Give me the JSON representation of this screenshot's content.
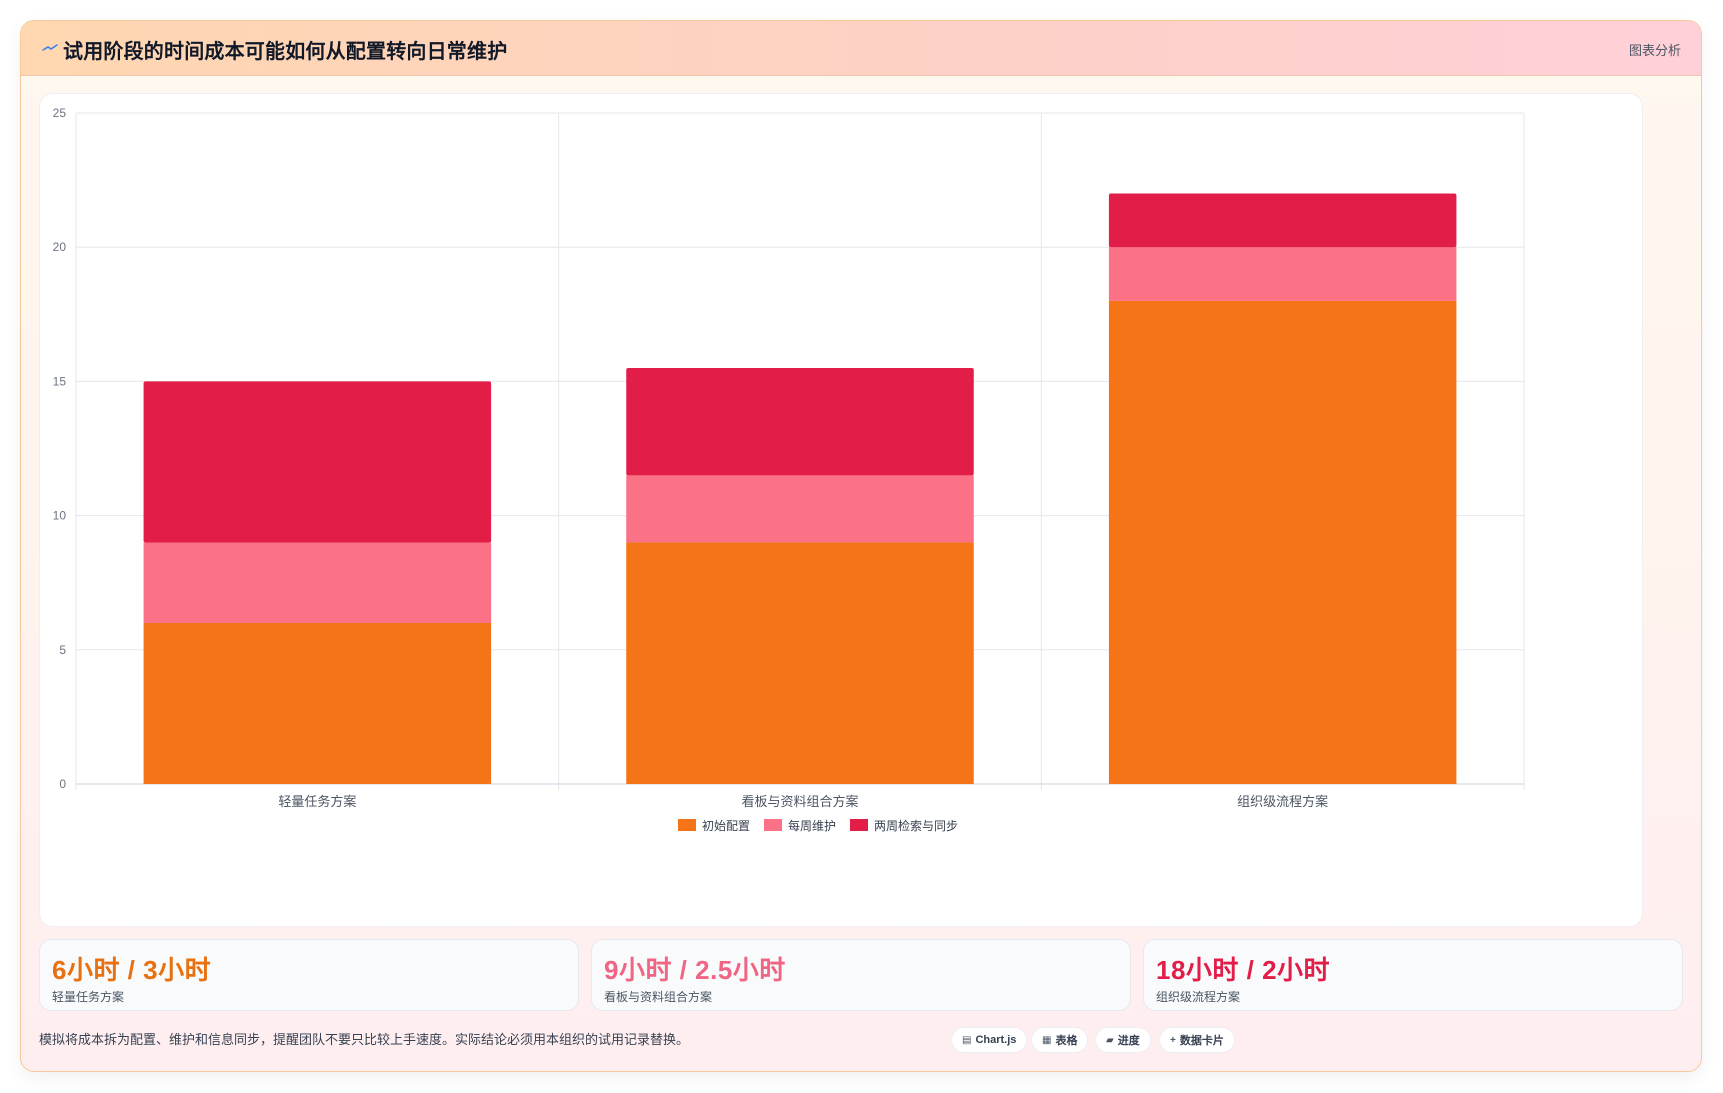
{
  "header": {
    "title": "试用阶段的时间成本可能如何从配置转向日常维护",
    "tag": "图表分析"
  },
  "chart_data": {
    "type": "bar",
    "stacked": true,
    "categories": [
      "轻量任务方案",
      "看板与资料组合方案",
      "组织级流程方案"
    ],
    "series": [
      {
        "name": "初始配置",
        "color": "#f57418",
        "values": [
          6,
          9,
          18
        ]
      },
      {
        "name": "每周维护",
        "color": "#fb7185",
        "values": [
          3,
          2.5,
          2
        ]
      },
      {
        "name": "两周检索与同步",
        "color": "#e11d48",
        "values": [
          6,
          4,
          2
        ]
      }
    ],
    "ylim": [
      0,
      25
    ],
    "yticks": [
      0,
      5,
      10,
      15,
      20,
      25
    ],
    "grid": true,
    "legend": "bottom"
  },
  "stats": [
    {
      "value": "6小时 / 3小时",
      "label": "轻量任务方案",
      "color": "#e8700f"
    },
    {
      "value": "9小时 / 2.5小时",
      "label": "看板与资料组合方案",
      "color": "#f06583"
    },
    {
      "value": "18小时 / 2小时",
      "label": "组织级流程方案",
      "color": "#e11d48"
    }
  ],
  "footer": {
    "note": "模拟将成本拆为配置、维护和信息同步，提醒团队不要只比较上手速度。实际结论必须用本组织的试用记录替换。",
    "chips": [
      {
        "icon": "chart-icon",
        "glyph": "▤",
        "label": "Chart.js"
      },
      {
        "icon": "table-icon",
        "glyph": "▦",
        "label": "表格"
      },
      {
        "icon": "progress-icon",
        "glyph": "▰",
        "label": "进度"
      },
      {
        "icon": "plus-icon",
        "glyph": "+",
        "label": "数据卡片"
      }
    ]
  }
}
